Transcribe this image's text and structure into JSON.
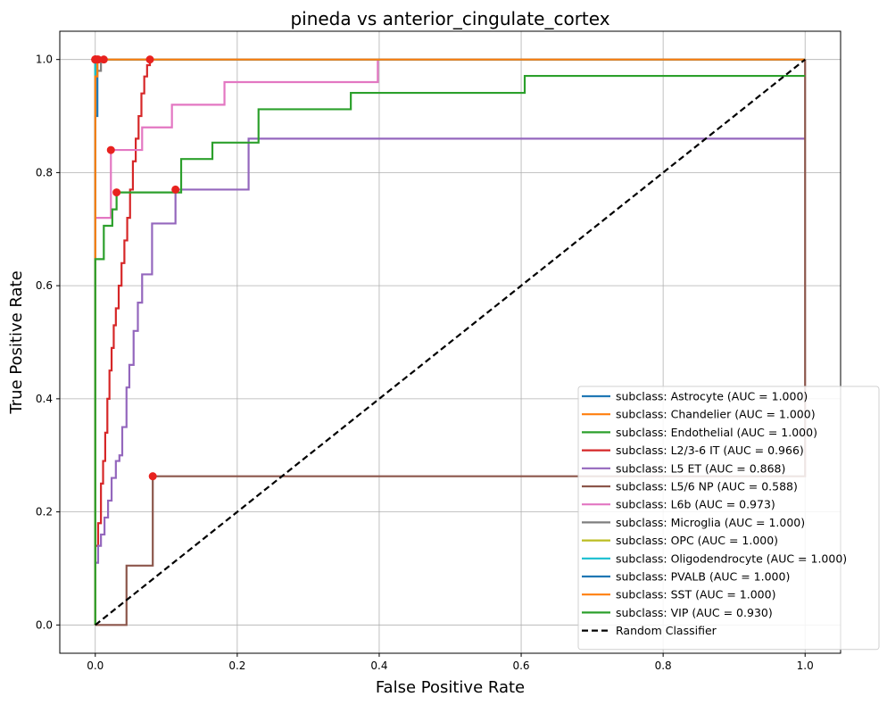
{
  "chart_data": {
    "type": "line",
    "title": "pineda vs anterior_cingulate_cortex",
    "xlabel": "False Positive Rate",
    "ylabel": "True Positive Rate",
    "xlim": [
      -0.05,
      1.05
    ],
    "ylim": [
      -0.05,
      1.05
    ],
    "xticks": [
      "0.0",
      "0.2",
      "0.4",
      "0.6",
      "0.8",
      "1.0"
    ],
    "yticks": [
      "0.0",
      "0.2",
      "0.4",
      "0.6",
      "0.8",
      "1.0"
    ],
    "grid": true,
    "legend_position": "lower-right",
    "series": [
      {
        "name": "subclass: Astrocyte (AUC = 1.000)",
        "color": "#1f77b4",
        "x": [
          0,
          0,
          1
        ],
        "y": [
          0,
          1,
          1
        ],
        "marker": [
          0,
          1
        ]
      },
      {
        "name": "subclass: Chandelier (AUC = 1.000)",
        "color": "#ff7f0e",
        "x": [
          0,
          0,
          1
        ],
        "y": [
          0,
          1,
          1
        ],
        "marker": [
          0,
          1
        ]
      },
      {
        "name": "subclass: Endothelial (AUC = 1.000)",
        "color": "#2ca02c",
        "x": [
          0,
          0,
          1
        ],
        "y": [
          0,
          1,
          1
        ],
        "marker": [
          0,
          1
        ]
      },
      {
        "name": "subclass: L2/3-6 IT (AUC = 0.966)",
        "color": "#d62728",
        "x": [
          0,
          0,
          0.004,
          0.004,
          0.008,
          0.008,
          0.011,
          0.011,
          0.014,
          0.014,
          0.017,
          0.017,
          0.02,
          0.02,
          0.023,
          0.023,
          0.026,
          0.026,
          0.029,
          0.029,
          0.033,
          0.033,
          0.037,
          0.037,
          0.041,
          0.041,
          0.045,
          0.045,
          0.049,
          0.049,
          0.053,
          0.053,
          0.057,
          0.057,
          0.061,
          0.061,
          0.065,
          0.065,
          0.069,
          0.069,
          0.073,
          0.073,
          0.077,
          0.077,
          1
        ],
        "y": [
          0,
          0.14,
          0.14,
          0.18,
          0.18,
          0.25,
          0.25,
          0.29,
          0.29,
          0.34,
          0.34,
          0.4,
          0.4,
          0.45,
          0.45,
          0.49,
          0.49,
          0.53,
          0.53,
          0.56,
          0.56,
          0.6,
          0.6,
          0.64,
          0.64,
          0.68,
          0.68,
          0.72,
          0.72,
          0.77,
          0.77,
          0.82,
          0.82,
          0.86,
          0.86,
          0.9,
          0.9,
          0.94,
          0.94,
          0.97,
          0.97,
          0.99,
          0.99,
          1.0,
          1.0
        ],
        "marker": [
          0.077,
          1.0
        ]
      },
      {
        "name": "subclass: L5 ET (AUC = 0.868)",
        "color": "#9467bd",
        "x": [
          0,
          0,
          0.004,
          0.004,
          0.008,
          0.008,
          0.013,
          0.013,
          0.018,
          0.018,
          0.023,
          0.023,
          0.029,
          0.029,
          0.034,
          0.034,
          0.038,
          0.038,
          0.044,
          0.044,
          0.048,
          0.048,
          0.054,
          0.054,
          0.06,
          0.06,
          0.066,
          0.066,
          0.08,
          0.08,
          0.113,
          0.113,
          0.216,
          0.216,
          1
        ],
        "y": [
          0,
          0.11,
          0.11,
          0.14,
          0.14,
          0.16,
          0.16,
          0.19,
          0.19,
          0.22,
          0.22,
          0.26,
          0.26,
          0.29,
          0.29,
          0.3,
          0.3,
          0.35,
          0.35,
          0.42,
          0.42,
          0.46,
          0.46,
          0.52,
          0.52,
          0.57,
          0.57,
          0.62,
          0.62,
          0.71,
          0.71,
          0.77,
          0.77,
          0.86,
          0.86
        ],
        "marker": [
          0.113,
          0.77
        ]
      },
      {
        "name": "subclass: L5/6 NP (AUC = 0.588)",
        "color": "#8c564b",
        "x": [
          0,
          0.044,
          0.044,
          0.081,
          0.081,
          1,
          1
        ],
        "y": [
          0,
          0,
          0.105,
          0.105,
          0.263,
          0.263,
          1
        ],
        "marker": [
          0.081,
          0.263
        ]
      },
      {
        "name": "subclass: L6b (AUC = 0.973)",
        "color": "#e377c2",
        "x": [
          0,
          0,
          0.022,
          0.022,
          0.066,
          0.066,
          0.108,
          0.108,
          0.182,
          0.182,
          0.398,
          0.398,
          1
        ],
        "y": [
          0,
          0.72,
          0.72,
          0.84,
          0.84,
          0.88,
          0.88,
          0.92,
          0.92,
          0.96,
          0.96,
          1.0,
          1.0
        ],
        "marker": [
          0.022,
          0.84
        ]
      },
      {
        "name": "subclass: Microglia (AUC = 1.000)",
        "color": "#7f7f7f",
        "x": [
          0,
          0,
          0.008,
          0.008,
          1
        ],
        "y": [
          0,
          0.98,
          0.98,
          1.0,
          1.0
        ],
        "marker": [
          0.012,
          1
        ]
      },
      {
        "name": "subclass: OPC (AUC = 1.000)",
        "color": "#bcbd22",
        "x": [
          0,
          0,
          1
        ],
        "y": [
          0,
          1,
          1
        ],
        "marker": [
          0,
          1
        ]
      },
      {
        "name": "subclass: Oligodendrocyte (AUC = 1.000)",
        "color": "#17becf",
        "x": [
          0,
          0,
          1
        ],
        "y": [
          0,
          1,
          1
        ],
        "marker": [
          0,
          1
        ]
      },
      {
        "name": "subclass: PVALB (AUC = 1.000)",
        "color": "#1f77b4",
        "x": [
          0,
          0,
          0.003,
          0.003,
          1
        ],
        "y": [
          0,
          0.9,
          0.9,
          1.0,
          1.0
        ],
        "marker": [
          0.003,
          1
        ]
      },
      {
        "name": "subclass: SST (AUC = 1.000)",
        "color": "#ff7f0e",
        "x": [
          0,
          0,
          0.003,
          0.003,
          1
        ],
        "y": [
          0,
          0.97,
          0.97,
          1.0,
          1.0
        ],
        "marker": [
          0.004,
          1
        ]
      },
      {
        "name": "subclass: VIP (AUC = 0.930)",
        "color": "#2ca02c",
        "x": [
          0,
          0,
          0.012,
          0.012,
          0.024,
          0.024,
          0.03,
          0.03,
          0.121,
          0.121,
          0.165,
          0.165,
          0.23,
          0.23,
          0.36,
          0.36,
          0.605,
          0.605,
          1
        ],
        "y": [
          0,
          0.647,
          0.647,
          0.706,
          0.706,
          0.735,
          0.735,
          0.765,
          0.765,
          0.824,
          0.824,
          0.853,
          0.853,
          0.912,
          0.912,
          0.941,
          0.941,
          0.971,
          0.971
        ],
        "marker": [
          0.03,
          0.765
        ]
      },
      {
        "name": "Random Classifier",
        "color": "#000000",
        "dashed": true,
        "x": [
          0,
          1
        ],
        "y": [
          0,
          1
        ]
      }
    ]
  }
}
